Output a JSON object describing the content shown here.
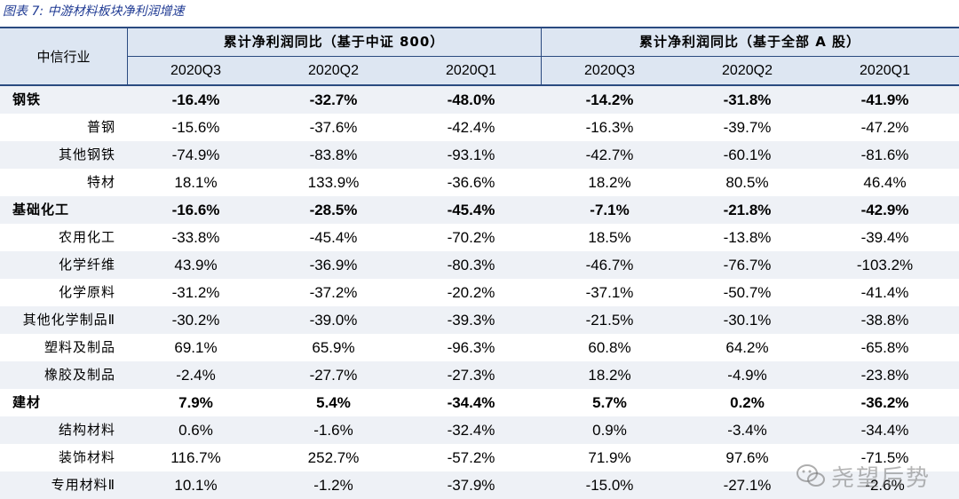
{
  "caption": "图表 7:  中游材料板块净利润增速",
  "header": {
    "industry_label": "中信行业",
    "groups": [
      "累计净利润同比（基于中证 800）",
      "累计净利润同比（基于全部 A 股）"
    ],
    "periods": [
      "2020Q3",
      "2020Q2",
      "2020Q1",
      "2020Q3",
      "2020Q2",
      "2020Q1"
    ]
  },
  "rows": [
    {
      "name": "钢铁",
      "level": 1,
      "values": [
        "-16.4%",
        "-32.7%",
        "-48.0%",
        "-14.2%",
        "-31.8%",
        "-41.9%"
      ]
    },
    {
      "name": "普钢",
      "level": 2,
      "values": [
        "-15.6%",
        "-37.6%",
        "-42.4%",
        "-16.3%",
        "-39.7%",
        "-47.2%"
      ]
    },
    {
      "name": "其他钢铁",
      "level": 2,
      "values": [
        "-74.9%",
        "-83.8%",
        "-93.1%",
        "-42.7%",
        "-60.1%",
        "-81.6%"
      ]
    },
    {
      "name": "特材",
      "level": 2,
      "values": [
        "18.1%",
        "133.9%",
        "-36.6%",
        "18.2%",
        "80.5%",
        "46.4%"
      ]
    },
    {
      "name": "基础化工",
      "level": 1,
      "values": [
        "-16.6%",
        "-28.5%",
        "-45.4%",
        "-7.1%",
        "-21.8%",
        "-42.9%"
      ]
    },
    {
      "name": "农用化工",
      "level": 2,
      "values": [
        "-33.8%",
        "-45.4%",
        "-70.2%",
        "18.5%",
        "-13.8%",
        "-39.4%"
      ]
    },
    {
      "name": "化学纤维",
      "level": 2,
      "values": [
        "43.9%",
        "-36.9%",
        "-80.3%",
        "-46.7%",
        "-76.7%",
        "-103.2%"
      ]
    },
    {
      "name": "化学原料",
      "level": 2,
      "values": [
        "-31.2%",
        "-37.2%",
        "-20.2%",
        "-37.1%",
        "-50.7%",
        "-41.4%"
      ]
    },
    {
      "name": "其他化学制品Ⅱ",
      "level": 2,
      "values": [
        "-30.2%",
        "-39.0%",
        "-39.3%",
        "-21.5%",
        "-30.1%",
        "-38.8%"
      ]
    },
    {
      "name": "塑料及制品",
      "level": 2,
      "values": [
        "69.1%",
        "65.9%",
        "-96.3%",
        "60.8%",
        "64.2%",
        "-65.8%"
      ]
    },
    {
      "name": "橡胶及制品",
      "level": 2,
      "values": [
        "-2.4%",
        "-27.7%",
        "-27.3%",
        "18.2%",
        "-4.9%",
        "-23.8%"
      ]
    },
    {
      "name": "建材",
      "level": 1,
      "values": [
        "7.9%",
        "5.4%",
        "-34.4%",
        "5.7%",
        "0.2%",
        "-36.2%"
      ]
    },
    {
      "name": "结构材料",
      "level": 2,
      "values": [
        "0.6%",
        "-1.6%",
        "-32.4%",
        "0.9%",
        "-3.4%",
        "-34.4%"
      ]
    },
    {
      "name": "装饰材料",
      "level": 2,
      "values": [
        "116.7%",
        "252.7%",
        "-57.2%",
        "71.9%",
        "97.6%",
        "-71.5%"
      ]
    },
    {
      "name": "专用材料Ⅱ",
      "level": 2,
      "values": [
        "10.1%",
        "-1.2%",
        "-37.9%",
        "-15.0%",
        "-27.1%",
        "-2.6%"
      ]
    }
  ],
  "watermark": {
    "text": "尧望后势",
    "icon": "wechat-icon"
  }
}
